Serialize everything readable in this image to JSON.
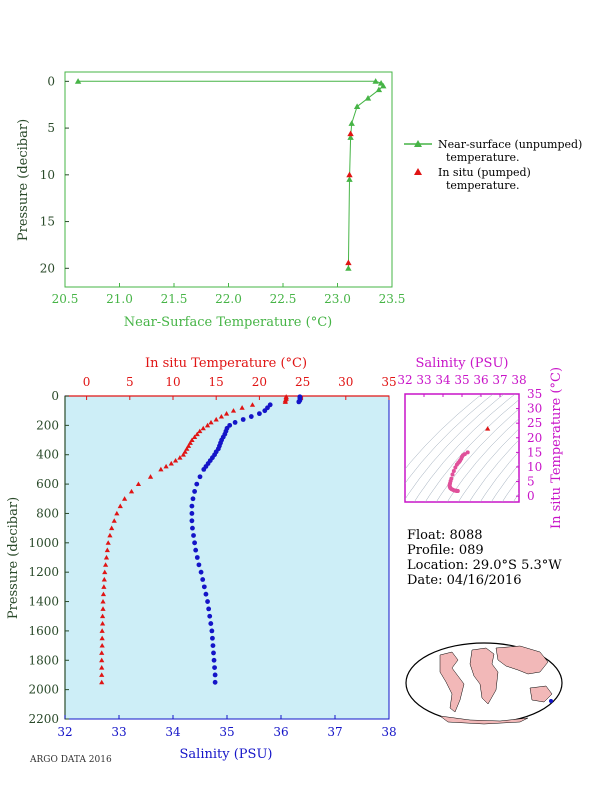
{
  "colors": {
    "green": "#46b446",
    "red": "#e01414",
    "blue": "#1414c8",
    "magenta": "#c814c8",
    "axis_dark": "#2a4a2a",
    "panel_bg": "#cdeef7",
    "land": "#f2b8b8"
  },
  "float_info": {
    "float": "Float:  8088",
    "profile": "Profile:  089",
    "location": "Location:  29.0°S   5.3°W",
    "date": "Date:  04/16/2016"
  },
  "footer_note": "ARGO DATA 2016",
  "chart_data": [
    {
      "name": "near-surface",
      "type": "line",
      "xlabel": "Near-Surface Temperature (°C)",
      "ylabel": "Pressure (decibar)",
      "xlim": [
        20.5,
        23.5
      ],
      "ylim": [
        22,
        -1
      ],
      "xticks": [
        "20.5",
        "21.0",
        "21.5",
        "22.0",
        "22.5",
        "23.0",
        "23.5"
      ],
      "yticks": [
        "0",
        "5",
        "10",
        "15",
        "20"
      ],
      "series": [
        {
          "name": "Near-surface (unpumped) temperature.",
          "legend_line1": "Near-surface (unpumped)",
          "legend_line2": "temperature.",
          "color": "#46b446",
          "marker": "triangle",
          "x": [
            20.62,
            23.35,
            23.4,
            23.42,
            23.38,
            23.28,
            23.18,
            23.13,
            23.12,
            23.11,
            23.1
          ],
          "y": [
            0.0,
            0.0,
            0.2,
            0.5,
            0.9,
            1.8,
            2.7,
            4.5,
            6.0,
            10.5,
            20.0
          ]
        },
        {
          "name": "In situ (pumped) temperature.",
          "legend_line1": "In situ (pumped)",
          "legend_line2": "temperature.",
          "color": "#e01414",
          "marker": "triangle",
          "x": [
            23.12,
            23.11,
            23.1
          ],
          "y": [
            5.6,
            10.0,
            19.4
          ]
        }
      ]
    },
    {
      "name": "profile",
      "type": "scatter",
      "top_xlabel": "In situ Temperature (°C)",
      "bottom_xlabel": "Salinity (PSU)",
      "ylabel": "Pressure (decibar)",
      "temp_lim": [
        -2.5,
        35
      ],
      "sal_lim": [
        32,
        38
      ],
      "ylim": [
        0,
        2200
      ],
      "temp_ticks": [
        "0",
        "5",
        "10",
        "15",
        "20",
        "25",
        "30",
        "35"
      ],
      "sal_ticks": [
        "32",
        "33",
        "34",
        "35",
        "36",
        "37",
        "38"
      ],
      "pressure_ticks": [
        "0",
        "200",
        "400",
        "600",
        "800",
        "1000",
        "1200",
        "1400",
        "1600",
        "1800",
        "2000",
        "2200"
      ],
      "temperature": {
        "name": "In situ Temperature",
        "pressure": [
          5,
          10,
          20,
          30,
          40,
          60,
          80,
          100,
          120,
          140,
          160,
          180,
          200,
          220,
          240,
          260,
          280,
          300,
          320,
          340,
          360,
          380,
          400,
          420,
          440,
          460,
          480,
          500,
          550,
          600,
          650,
          700,
          750,
          800,
          850,
          900,
          950,
          1000,
          1050,
          1100,
          1150,
          1200,
          1250,
          1300,
          1350,
          1400,
          1450,
          1500,
          1550,
          1600,
          1650,
          1700,
          1750,
          1800,
          1850,
          1900,
          1950
        ],
        "values": [
          23.1,
          23.1,
          23.1,
          23.0,
          23.0,
          19.2,
          18.0,
          17.0,
          16.2,
          15.6,
          15.0,
          14.4,
          14.0,
          13.5,
          13.1,
          12.8,
          12.5,
          12.2,
          12.0,
          11.8,
          11.6,
          11.4,
          11.2,
          10.8,
          10.3,
          9.8,
          9.2,
          8.6,
          7.4,
          6.0,
          5.2,
          4.4,
          3.9,
          3.5,
          3.2,
          2.9,
          2.7,
          2.5,
          2.4,
          2.3,
          2.2,
          2.1,
          2.05,
          2.0,
          1.95,
          1.9,
          1.9,
          1.85,
          1.85,
          1.8,
          1.8,
          1.8,
          1.75,
          1.75,
          1.75,
          1.75,
          1.75
        ]
      },
      "salinity": {
        "name": "Salinity",
        "pressure": [
          5,
          10,
          20,
          30,
          40,
          60,
          80,
          100,
          120,
          140,
          160,
          180,
          200,
          220,
          240,
          260,
          280,
          300,
          320,
          340,
          360,
          380,
          400,
          420,
          440,
          460,
          480,
          500,
          550,
          600,
          650,
          700,
          750,
          800,
          850,
          900,
          950,
          1000,
          1050,
          1100,
          1150,
          1200,
          1250,
          1300,
          1350,
          1400,
          1450,
          1500,
          1550,
          1600,
          1650,
          1700,
          1750,
          1800,
          1850,
          1900,
          1950
        ],
        "values": [
          36.35,
          36.35,
          36.35,
          36.35,
          36.33,
          35.8,
          35.75,
          35.7,
          35.6,
          35.45,
          35.3,
          35.15,
          35.05,
          35.0,
          34.98,
          34.96,
          34.93,
          34.9,
          34.88,
          34.86,
          34.84,
          34.8,
          34.77,
          34.73,
          34.69,
          34.65,
          34.61,
          34.57,
          34.5,
          34.44,
          34.4,
          34.37,
          34.35,
          34.35,
          34.35,
          34.36,
          34.38,
          34.4,
          34.42,
          34.45,
          34.48,
          34.52,
          34.55,
          34.58,
          34.61,
          34.64,
          34.66,
          34.68,
          34.7,
          34.72,
          34.73,
          34.74,
          34.75,
          34.76,
          34.77,
          34.78,
          34.78
        ]
      }
    },
    {
      "name": "ts-diagram",
      "type": "scatter",
      "xlabel": "Salinity (PSU)",
      "ylabel": "In situ Temperature (°C)",
      "xlim": [
        32,
        38
      ],
      "ylim": [
        -2,
        35
      ],
      "xticks": [
        "32",
        "33",
        "34",
        "35",
        "36",
        "37",
        "38"
      ],
      "yticks": [
        "0",
        "5",
        "10",
        "15",
        "20",
        "25",
        "30",
        "35"
      ],
      "points": {
        "salinity": [
          36.35,
          35.3,
          35.15,
          35.05,
          35.0,
          34.96,
          34.9,
          34.86,
          34.8,
          34.73,
          34.65,
          34.57,
          34.5,
          34.44,
          34.4,
          34.37,
          34.35,
          34.35,
          34.36,
          34.38,
          34.4,
          34.45,
          34.52,
          34.58,
          34.64,
          34.68,
          34.72,
          34.74,
          34.76,
          34.78
        ],
        "temperature": [
          23.1,
          15.0,
          14.4,
          14.0,
          13.5,
          12.8,
          12.2,
          11.8,
          11.4,
          10.8,
          9.8,
          8.6,
          7.4,
          6.0,
          5.2,
          4.4,
          3.9,
          3.5,
          3.2,
          2.9,
          2.7,
          2.4,
          2.2,
          2.0,
          1.9,
          1.85,
          1.8,
          1.8,
          1.75,
          1.75
        ]
      }
    }
  ]
}
